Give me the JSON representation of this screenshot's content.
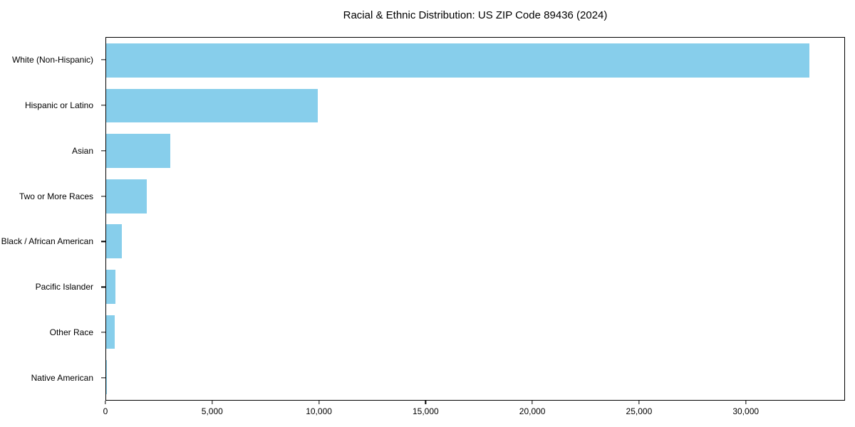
{
  "chart_data": {
    "type": "bar",
    "orientation": "horizontal",
    "title": "Racial & Ethnic Distribution: US ZIP Code 89436 (2024)",
    "categories": [
      "White (Non-Hispanic)",
      "Hispanic or Latino",
      "Asian",
      "Two or More Races",
      "Black / African American",
      "Pacific Islander",
      "Other Race",
      "Native American"
    ],
    "values": [
      33000,
      9950,
      3000,
      1900,
      750,
      420,
      390,
      50
    ],
    "xlabel": "",
    "ylabel": "",
    "xlim": [
      0,
      34650
    ],
    "x_ticks": [
      0,
      5000,
      10000,
      15000,
      20000,
      25000,
      30000
    ],
    "x_tick_labels": [
      "0",
      "5,000",
      "10,000",
      "15,000",
      "20,000",
      "25,000",
      "30,000"
    ],
    "bar_color": "#87CEEB",
    "frame_color": "#000000",
    "grid": false,
    "legend": "none"
  }
}
